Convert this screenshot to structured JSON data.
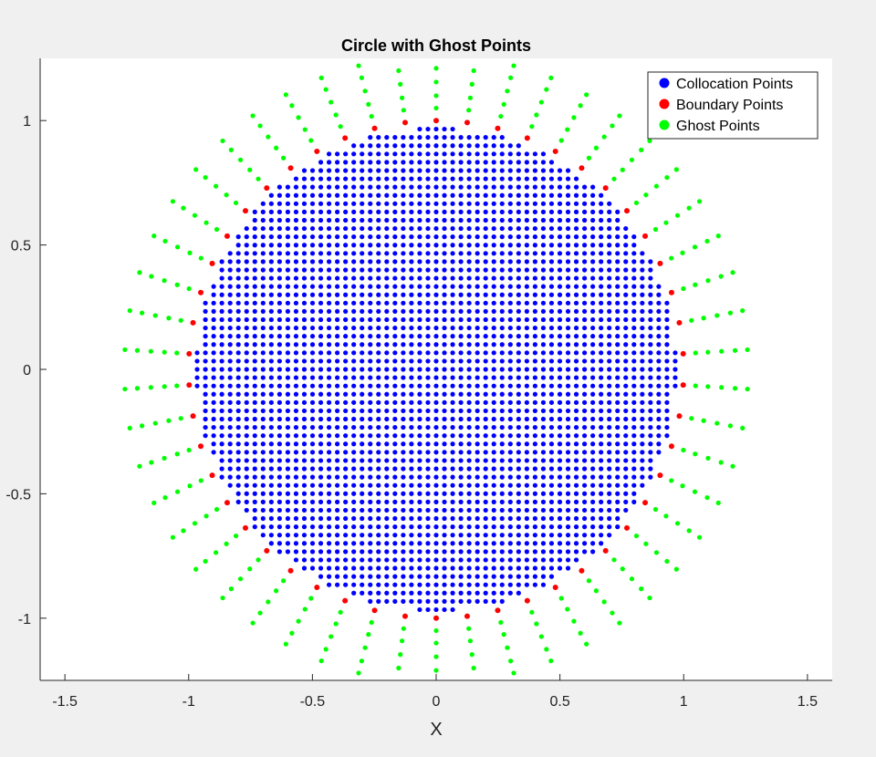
{
  "chart_data": {
    "type": "scatter",
    "title": "Circle with Ghost Points",
    "xlabel": "X",
    "ylabel": "",
    "xlim": [
      -1.6,
      1.6
    ],
    "ylim": [
      -1.25,
      1.25
    ],
    "xticks": [
      -1.5,
      -1,
      -0.5,
      0,
      0.5,
      1,
      1.5
    ],
    "xtick_labels": [
      "-1.5",
      "-1",
      "-0.5",
      "0",
      "0.5",
      "1",
      "1.5"
    ],
    "yticks": [
      -1,
      -0.5,
      0,
      0.5,
      1
    ],
    "ytick_labels": [
      "-1",
      "-0.5",
      "0",
      "0.5",
      "1"
    ],
    "grid": false,
    "legend_position": "top-right",
    "series": [
      {
        "name": "Collocation Points",
        "color": "#0000ff",
        "description": "grid of points with spacing 0.0333 inside circle of radius 0.97",
        "grid_spacing": 0.0333,
        "radius": 0.97
      },
      {
        "name": "Boundary Points",
        "color": "#ff0000",
        "description": "50 equally spaced points on unit circle",
        "count": 50,
        "radius": 1.0
      },
      {
        "name": "Ghost Points",
        "color": "#00ff00",
        "description": "5 points per boundary direction at radii 1.05 to 1.26",
        "radii": [
          1.05,
          1.1,
          1.155,
          1.21,
          1.26
        ]
      }
    ]
  }
}
